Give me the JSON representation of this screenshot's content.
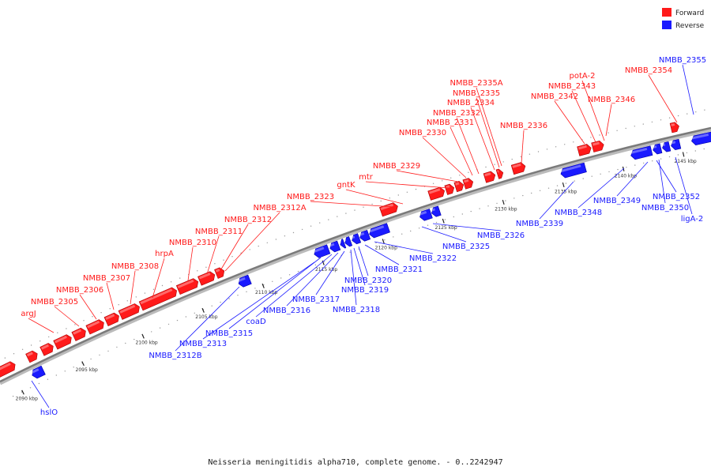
{
  "legend": {
    "forward_label": "Forward",
    "reverse_label": "Reverse",
    "forward_color": "#ff1a1a",
    "reverse_color": "#1a1aff"
  },
  "caption": "Neisseria meningitidis alpha710, complete genome. - 0..2242947",
  "axis": {
    "unit": "kbp",
    "ticks": [
      {
        "kbp": 2090,
        "label": "2090 kbp"
      },
      {
        "kbp": 2095,
        "label": "2095 kbp"
      },
      {
        "kbp": 2100,
        "label": "2100 kbp"
      },
      {
        "kbp": 2105,
        "label": "2105 kbp"
      },
      {
        "kbp": 2110,
        "label": "2110 kbp"
      },
      {
        "kbp": 2115,
        "label": "2115 kbp"
      },
      {
        "kbp": 2120,
        "label": "2120 kbp"
      },
      {
        "kbp": 2125,
        "label": "2125 kbp"
      },
      {
        "kbp": 2130,
        "label": "2130 kbp"
      },
      {
        "kbp": 2135,
        "label": "2135 kbp"
      },
      {
        "kbp": 2140,
        "label": "2140 kbp"
      },
      {
        "kbp": 2145,
        "label": "2145 kbp"
      }
    ]
  },
  "genes": {
    "forward": [
      "argJ",
      "NMBB_2305",
      "NMBB_2306",
      "NMBB_2307",
      "NMBB_2308",
      "hrpA",
      "NMBB_2310",
      "NMBB_2311",
      "NMBB_2312",
      "NMBB_2312A",
      "NMBB_2323",
      "gntK",
      "mtr",
      "NMBB_2329",
      "NMBB_2330",
      "NMBB_2331",
      "NMBB_2332",
      "NMBB_2334",
      "NMBB_2335",
      "NMBB_2335A",
      "NMBB_2336",
      "NMBB_2342",
      "NMBB_2343",
      "potA-2",
      "NMBB_2346",
      "NMBB_2354"
    ],
    "reverse": [
      "hslO",
      "NMBB_2312B",
      "NMBB_2313",
      "NMBB_2315",
      "coaD",
      "NMBB_2316",
      "NMBB_2317",
      "NMBB_2318",
      "NMBB_2319",
      "NMBB_2320",
      "NMBB_2321",
      "NMBB_2322",
      "NMBB_2325",
      "NMBB_2326",
      "NMBB_2339",
      "NMBB_2348",
      "NMBB_2349",
      "NMBB_2350",
      "NMBB_2352",
      "ligA-2",
      "NMBB_2355"
    ]
  }
}
